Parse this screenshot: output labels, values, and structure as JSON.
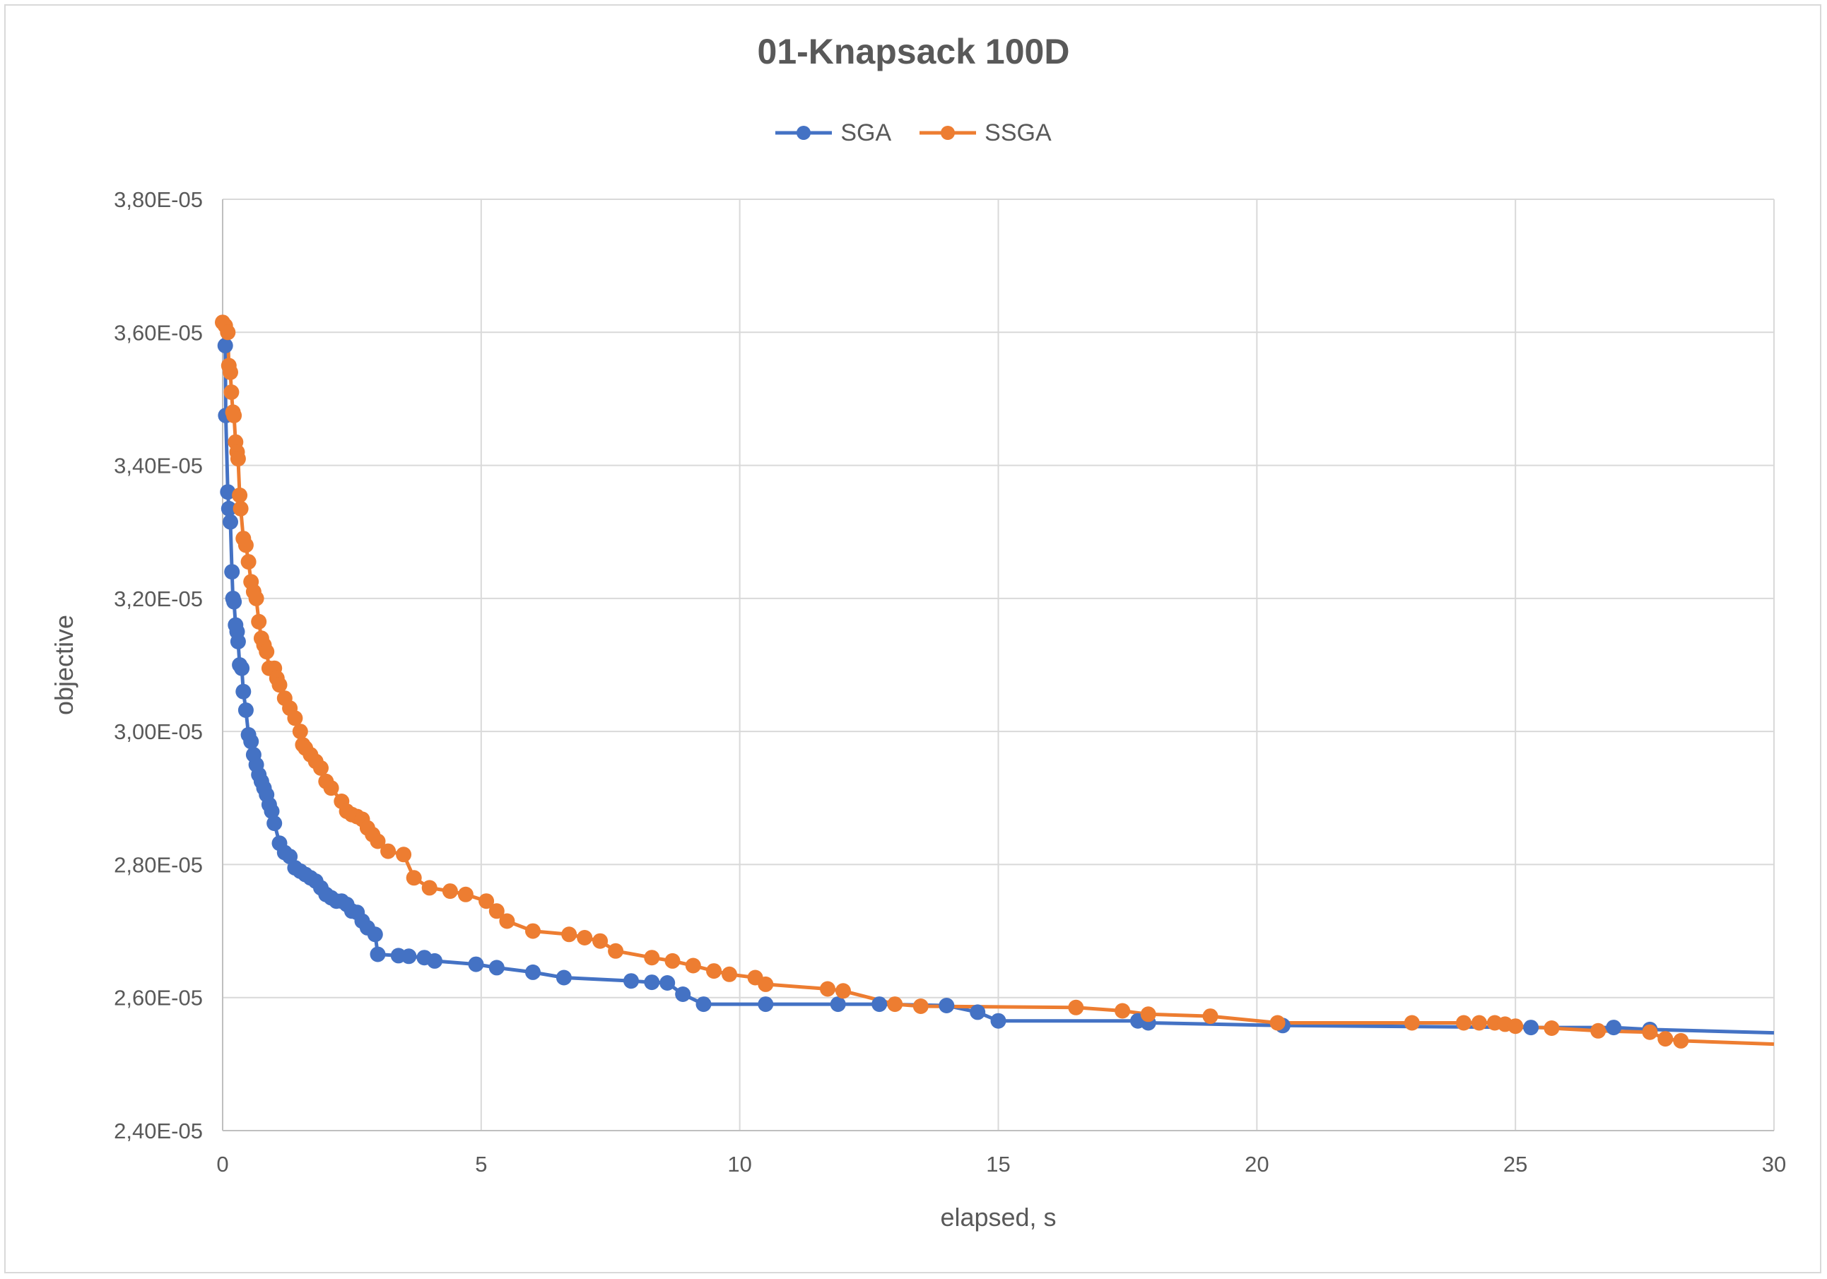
{
  "chart_data": {
    "type": "line",
    "title": "01-Knapsack 100D",
    "xlabel": "elapsed, s",
    "ylabel": "objective",
    "xlim": [
      0,
      30
    ],
    "ylim": [
      2.4e-05,
      3.8e-05
    ],
    "x_ticks": [
      0,
      5,
      10,
      15,
      20,
      25,
      30
    ],
    "x_tick_labels": [
      "0",
      "5",
      "10",
      "15",
      "20",
      "25",
      "30"
    ],
    "y_ticks": [
      2.4e-05,
      2.6e-05,
      2.8e-05,
      3e-05,
      3.2e-05,
      3.4e-05,
      3.6e-05,
      3.8e-05
    ],
    "y_tick_labels": [
      "2,40E-05",
      "2,60E-05",
      "2,80E-05",
      "3,00E-05",
      "3,20E-05",
      "3,40E-05",
      "3,60E-05",
      "3,80E-05"
    ],
    "grid": true,
    "legend_position": "top",
    "series": [
      {
        "name": "SGA",
        "color": "#4472c4",
        "x": [
          0.05,
          0.06,
          0.1,
          0.12,
          0.15,
          0.18,
          0.2,
          0.22,
          0.25,
          0.28,
          0.3,
          0.33,
          0.37,
          0.4,
          0.45,
          0.5,
          0.55,
          0.6,
          0.65,
          0.7,
          0.75,
          0.8,
          0.85,
          0.9,
          0.95,
          1.0,
          1.1,
          1.2,
          1.3,
          1.4,
          1.5,
          1.6,
          1.7,
          1.8,
          1.9,
          2.0,
          2.1,
          2.2,
          2.3,
          2.4,
          2.5,
          2.6,
          2.7,
          2.8,
          2.95,
          3.0,
          3.4,
          3.6,
          3.9,
          4.1,
          4.9,
          5.3,
          6.0,
          6.6,
          7.9,
          8.3,
          8.6,
          8.9,
          9.3,
          10.5,
          11.9,
          12.7,
          14.0,
          14.6,
          15.0,
          17.7,
          17.9,
          20.5,
          25.3,
          26.9,
          27.6,
          30.0
        ],
        "y": [
          3.58e-05,
          3.475e-05,
          3.36e-05,
          3.335e-05,
          3.315e-05,
          3.24e-05,
          3.2e-05,
          3.195e-05,
          3.16e-05,
          3.15e-05,
          3.135e-05,
          3.1e-05,
          3.095e-05,
          3.06e-05,
          3.032e-05,
          2.995e-05,
          2.985e-05,
          2.965e-05,
          2.95e-05,
          2.935e-05,
          2.925e-05,
          2.915e-05,
          2.905e-05,
          2.89e-05,
          2.88e-05,
          2.862e-05,
          2.832e-05,
          2.818e-05,
          2.812e-05,
          2.795e-05,
          2.79e-05,
          2.785e-05,
          2.78e-05,
          2.775e-05,
          2.765e-05,
          2.755e-05,
          2.75e-05,
          2.745e-05,
          2.745e-05,
          2.74e-05,
          2.73e-05,
          2.728e-05,
          2.715e-05,
          2.705e-05,
          2.695e-05,
          2.665e-05,
          2.663e-05,
          2.662e-05,
          2.66e-05,
          2.655e-05,
          2.65e-05,
          2.645e-05,
          2.638e-05,
          2.63e-05,
          2.625e-05,
          2.623e-05,
          2.622e-05,
          2.605e-05,
          2.59e-05,
          2.59e-05,
          2.59e-05,
          2.59e-05,
          2.588e-05,
          2.578e-05,
          2.565e-05,
          2.565e-05,
          2.562e-05,
          2.558e-05,
          2.555e-05,
          2.555e-05,
          2.552e-05,
          2.547e-05
        ]
      },
      {
        "name": "SSGA",
        "color": "#ed7d31",
        "x": [
          0.0,
          0.05,
          0.1,
          0.12,
          0.15,
          0.17,
          0.2,
          0.22,
          0.25,
          0.28,
          0.3,
          0.33,
          0.35,
          0.4,
          0.45,
          0.5,
          0.55,
          0.6,
          0.65,
          0.7,
          0.75,
          0.8,
          0.85,
          0.9,
          1.0,
          1.05,
          1.1,
          1.2,
          1.3,
          1.4,
          1.5,
          1.55,
          1.6,
          1.7,
          1.8,
          1.9,
          2.0,
          2.1,
          2.3,
          2.4,
          2.5,
          2.6,
          2.7,
          2.8,
          2.9,
          3.0,
          3.2,
          3.5,
          3.7,
          4.0,
          4.4,
          4.7,
          5.1,
          5.3,
          5.5,
          6.0,
          6.7,
          7.0,
          7.3,
          7.6,
          8.3,
          8.7,
          9.1,
          9.5,
          9.8,
          10.3,
          10.5,
          11.7,
          12.0,
          13.0,
          13.5,
          16.5,
          17.4,
          17.9,
          19.1,
          20.4,
          23.0,
          24.0,
          24.3,
          24.6,
          24.8,
          25.0,
          25.7,
          26.6,
          27.6,
          27.9,
          28.2,
          30.0
        ],
        "y": [
          3.615e-05,
          3.61e-05,
          3.6e-05,
          3.55e-05,
          3.54e-05,
          3.51e-05,
          3.48e-05,
          3.475e-05,
          3.435e-05,
          3.42e-05,
          3.41e-05,
          3.355e-05,
          3.335e-05,
          3.29e-05,
          3.28e-05,
          3.255e-05,
          3.225e-05,
          3.21e-05,
          3.2e-05,
          3.165e-05,
          3.14e-05,
          3.13e-05,
          3.12e-05,
          3.095e-05,
          3.095e-05,
          3.08e-05,
          3.07e-05,
          3.05e-05,
          3.035e-05,
          3.02e-05,
          3e-05,
          2.98e-05,
          2.975e-05,
          2.965e-05,
          2.955e-05,
          2.945e-05,
          2.925e-05,
          2.915e-05,
          2.895e-05,
          2.88e-05,
          2.875e-05,
          2.872e-05,
          2.868e-05,
          2.855e-05,
          2.845e-05,
          2.835e-05,
          2.82e-05,
          2.815e-05,
          2.78e-05,
          2.765e-05,
          2.76e-05,
          2.755e-05,
          2.745e-05,
          2.73e-05,
          2.715e-05,
          2.7e-05,
          2.695e-05,
          2.69e-05,
          2.685e-05,
          2.67e-05,
          2.66e-05,
          2.655e-05,
          2.648e-05,
          2.64e-05,
          2.635e-05,
          2.63e-05,
          2.62e-05,
          2.613e-05,
          2.61e-05,
          2.59e-05,
          2.587e-05,
          2.585e-05,
          2.58e-05,
          2.575e-05,
          2.572e-05,
          2.562e-05,
          2.562e-05,
          2.562e-05,
          2.562e-05,
          2.562e-05,
          2.56e-05,
          2.557e-05,
          2.554e-05,
          2.55e-05,
          2.548e-05,
          2.538e-05,
          2.535e-05,
          2.53e-05
        ]
      }
    ]
  }
}
